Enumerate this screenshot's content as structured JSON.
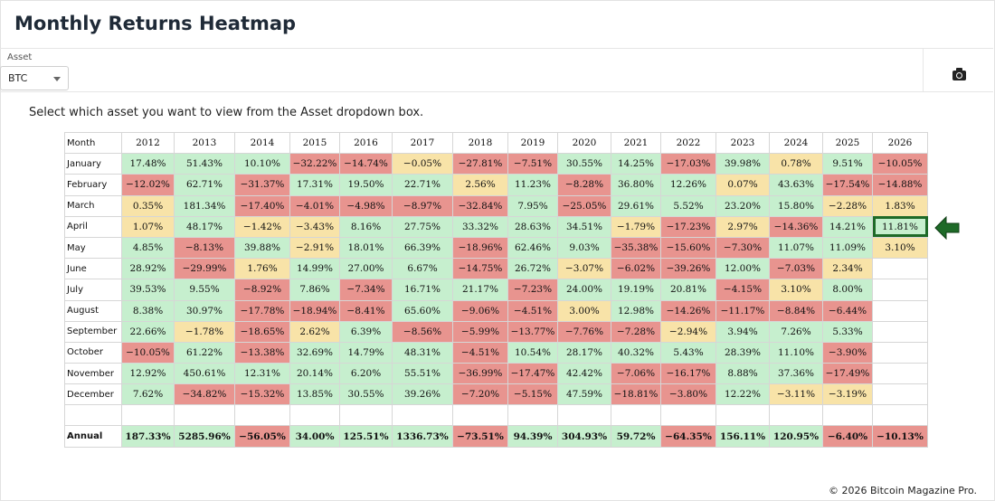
{
  "title": "Monthly Returns Heatmap",
  "asset": {
    "label": "Asset",
    "selected": "BTC"
  },
  "camera_icon": "camera-icon",
  "instruction": "Select which asset you want to view from the Asset dropdown box.",
  "colors": {
    "positive": "#c6efce",
    "negative": "#e8948f",
    "neutral": "#f8e3a8",
    "highlight": "#1e6a28"
  },
  "table": {
    "month_header": "Month",
    "years": [
      "2012",
      "2013",
      "2014",
      "2015",
      "2016",
      "2017",
      "2018",
      "2019",
      "2020",
      "2021",
      "2022",
      "2023",
      "2024",
      "2025",
      "2026"
    ],
    "rows": [
      {
        "month": "January",
        "values": [
          "17.48%",
          "51.43%",
          "10.10%",
          "−32.22%",
          "−14.74%",
          "−0.05%",
          "−27.81%",
          "−7.51%",
          "30.55%",
          "14.25%",
          "−17.03%",
          "39.98%",
          "0.78%",
          "9.51%",
          "−10.05%"
        ]
      },
      {
        "month": "February",
        "values": [
          "−12.02%",
          "62.71%",
          "−31.37%",
          "17.31%",
          "19.50%",
          "22.71%",
          "2.56%",
          "11.23%",
          "−8.28%",
          "36.80%",
          "12.26%",
          "0.07%",
          "43.63%",
          "−17.54%",
          "−14.88%"
        ]
      },
      {
        "month": "March",
        "values": [
          "0.35%",
          "181.34%",
          "−17.40%",
          "−4.01%",
          "−4.98%",
          "−8.97%",
          "−32.84%",
          "7.95%",
          "−25.05%",
          "29.61%",
          "5.52%",
          "23.20%",
          "15.80%",
          "−2.28%",
          "1.83%"
        ]
      },
      {
        "month": "April",
        "values": [
          "1.07%",
          "48.17%",
          "−1.42%",
          "−3.43%",
          "8.16%",
          "27.75%",
          "33.32%",
          "28.63%",
          "34.51%",
          "−1.79%",
          "−17.23%",
          "2.97%",
          "−14.36%",
          "14.21%",
          "11.81%"
        ]
      },
      {
        "month": "May",
        "values": [
          "4.85%",
          "−8.13%",
          "39.88%",
          "−2.91%",
          "18.01%",
          "66.39%",
          "−18.96%",
          "62.46%",
          "9.03%",
          "−35.38%",
          "−15.60%",
          "−7.30%",
          "11.07%",
          "11.09%",
          "3.10%"
        ]
      },
      {
        "month": "June",
        "values": [
          "28.92%",
          "−29.99%",
          "1.76%",
          "14.99%",
          "27.00%",
          "6.67%",
          "−14.75%",
          "26.72%",
          "−3.07%",
          "−6.02%",
          "−39.26%",
          "12.00%",
          "−7.03%",
          "2.34%",
          ""
        ]
      },
      {
        "month": "July",
        "values": [
          "39.53%",
          "9.55%",
          "−8.92%",
          "7.86%",
          "−7.34%",
          "16.71%",
          "21.17%",
          "−7.23%",
          "24.00%",
          "19.19%",
          "20.81%",
          "−4.15%",
          "3.10%",
          "8.00%",
          ""
        ]
      },
      {
        "month": "August",
        "values": [
          "8.38%",
          "30.97%",
          "−17.78%",
          "−18.94%",
          "−8.41%",
          "65.60%",
          "−9.06%",
          "−4.51%",
          "3.00%",
          "12.98%",
          "−14.26%",
          "−11.17%",
          "−8.84%",
          "−6.44%",
          ""
        ]
      },
      {
        "month": "September",
        "values": [
          "22.66%",
          "−1.78%",
          "−18.65%",
          "2.62%",
          "6.39%",
          "−8.56%",
          "−5.99%",
          "−13.77%",
          "−7.76%",
          "−7.28%",
          "−2.94%",
          "3.94%",
          "7.26%",
          "5.33%",
          ""
        ]
      },
      {
        "month": "October",
        "values": [
          "−10.05%",
          "61.22%",
          "−13.38%",
          "32.69%",
          "14.79%",
          "48.31%",
          "−4.51%",
          "10.54%",
          "28.17%",
          "40.32%",
          "5.43%",
          "28.39%",
          "11.10%",
          "−3.90%",
          ""
        ]
      },
      {
        "month": "November",
        "values": [
          "12.92%",
          "450.61%",
          "12.31%",
          "20.14%",
          "6.20%",
          "55.51%",
          "−36.99%",
          "−17.47%",
          "42.42%",
          "−7.06%",
          "−16.17%",
          "8.88%",
          "37.36%",
          "−17.49%",
          ""
        ]
      },
      {
        "month": "December",
        "values": [
          "7.62%",
          "−34.82%",
          "−15.32%",
          "13.85%",
          "30.55%",
          "39.26%",
          "−7.20%",
          "−5.15%",
          "47.59%",
          "−18.81%",
          "−3.80%",
          "12.22%",
          "−3.11%",
          "−3.19%",
          ""
        ]
      }
    ],
    "annual": {
      "label": "Annual",
      "values": [
        "187.33%",
        "5285.96%",
        "−56.05%",
        "34.00%",
        "125.51%",
        "1336.73%",
        "−73.51%",
        "94.39%",
        "304.93%",
        "59.72%",
        "−64.35%",
        "156.11%",
        "120.95%",
        "−6.40%",
        "−10.13%"
      ]
    }
  },
  "highlight": {
    "month": "April",
    "year": "2026",
    "arrow_icon": "left-arrow-icon"
  },
  "footer": "© 2026 Bitcoin Magazine Pro."
}
